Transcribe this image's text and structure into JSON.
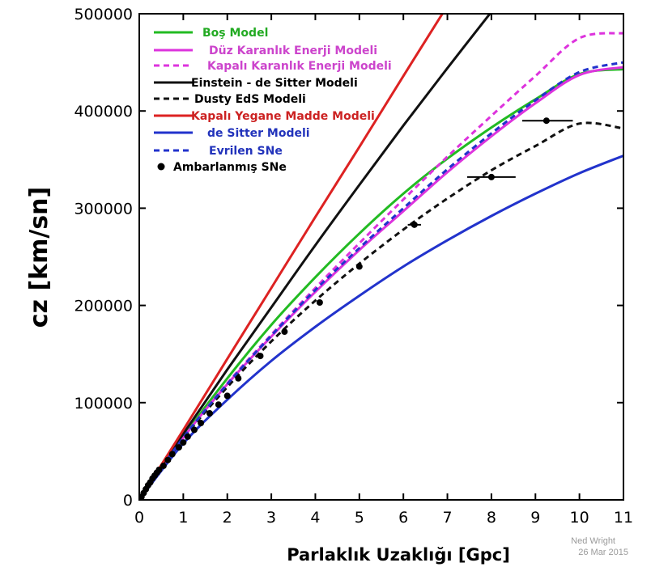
{
  "chart_data": {
    "type": "line",
    "xlabel": "Parlaklık Uzaklığı [Gpc]",
    "ylabel": "cz [km/sn]",
    "xlim": [
      0,
      11
    ],
    "ylim": [
      0,
      500000
    ],
    "x_ticks": [
      0,
      1,
      2,
      3,
      4,
      5,
      6,
      7,
      8,
      9,
      10,
      11
    ],
    "y_ticks": [
      0,
      100000,
      200000,
      300000,
      400000,
      500000
    ],
    "y_tick_labels": [
      "0",
      "100000",
      "200000",
      "300000",
      "400000",
      "500000"
    ],
    "legend_position": "top-left",
    "grid": false,
    "credit": [
      "Ned Wright",
      "26 Mar 2015"
    ],
    "series": [
      {
        "name": "Boş Model",
        "color": "#22bb22",
        "dash": "solid",
        "label_color": "#22aa22",
        "points": [
          [
            0,
            0
          ],
          [
            1,
            65000
          ],
          [
            2,
            125000
          ],
          [
            3,
            180000
          ],
          [
            4,
            229000
          ],
          [
            5,
            274000
          ],
          [
            6,
            315000
          ],
          [
            7,
            351000
          ],
          [
            8,
            383000
          ],
          [
            9,
            412000
          ],
          [
            10,
            438000
          ],
          [
            11,
            443000
          ]
        ]
      },
      {
        "name": "Düz Karanlık Enerji Modeli",
        "color": "#dd33dd",
        "dash": "solid",
        "label_color": "#cc44cc",
        "points": [
          [
            0,
            0
          ],
          [
            1,
            64000
          ],
          [
            2,
            119000
          ],
          [
            3,
            168000
          ],
          [
            4,
            214000
          ],
          [
            5,
            257000
          ],
          [
            6,
            297000
          ],
          [
            7,
            337000
          ],
          [
            8,
            374000
          ],
          [
            9,
            408000
          ],
          [
            10,
            437000
          ],
          [
            11,
            445000
          ]
        ]
      },
      {
        "name": "Kapalı Karanlık Enerji Modeli",
        "color": "#dd33dd",
        "dash": "dashed",
        "label_color": "#cc44cc",
        "points": [
          [
            0,
            0
          ],
          [
            1,
            64000
          ],
          [
            2,
            120000
          ],
          [
            3,
            170000
          ],
          [
            4,
            218000
          ],
          [
            5,
            264000
          ],
          [
            6,
            309000
          ],
          [
            7,
            353000
          ],
          [
            8,
            395000
          ],
          [
            9,
            436000
          ],
          [
            10,
            475000
          ],
          [
            11,
            480000
          ]
        ]
      },
      {
        "name": "Einstein - de Sitter Modeli",
        "color": "#111111",
        "dash": "solid",
        "label_color": "#000000",
        "points": [
          [
            0,
            0
          ],
          [
            1,
            68000
          ],
          [
            2,
            134000
          ],
          [
            3,
            198000
          ],
          [
            4,
            262000
          ],
          [
            5,
            324000
          ],
          [
            6,
            385000
          ],
          [
            7,
            444000
          ],
          [
            8,
            502000
          ]
        ]
      },
      {
        "name": "Dusty EdS Modeli",
        "color": "#111111",
        "dash": "dashed",
        "label_color": "#000000",
        "points": [
          [
            0,
            0
          ],
          [
            1,
            63000
          ],
          [
            2,
            116000
          ],
          [
            3,
            163000
          ],
          [
            4,
            205000
          ],
          [
            5,
            243000
          ],
          [
            6,
            278000
          ],
          [
            7,
            310000
          ],
          [
            8,
            339000
          ],
          [
            9,
            364000
          ],
          [
            10,
            387000
          ],
          [
            11,
            382000
          ]
        ]
      },
      {
        "name": "Kapalı Yegane Madde Modeli",
        "color": "#dd2222",
        "dash": "solid",
        "label_color": "#cc2222",
        "points": [
          [
            0,
            0
          ],
          [
            1,
            72000
          ],
          [
            2,
            145000
          ],
          [
            3,
            218000
          ],
          [
            4,
            291000
          ],
          [
            5,
            363000
          ],
          [
            6,
            436000
          ],
          [
            6.9,
            501000
          ]
        ]
      },
      {
        "name": "de Sitter Modeli",
        "color": "#2233cc",
        "dash": "solid",
        "label_color": "#2233bb",
        "points": [
          [
            0,
            0
          ],
          [
            1,
            58000
          ],
          [
            2,
            103000
          ],
          [
            3,
            143000
          ],
          [
            4,
            178000
          ],
          [
            5,
            210000
          ],
          [
            6,
            240000
          ],
          [
            7,
            267000
          ],
          [
            8,
            292000
          ],
          [
            9,
            315000
          ],
          [
            10,
            336000
          ],
          [
            11,
            354000
          ]
        ]
      },
      {
        "name": "Evrilen SNe",
        "color": "#2233cc",
        "dash": "dashed",
        "label_color": "#2233bb",
        "points": [
          [
            0,
            0
          ],
          [
            1,
            64000
          ],
          [
            2,
            119000
          ],
          [
            3,
            169000
          ],
          [
            4,
            216000
          ],
          [
            5,
            259000
          ],
          [
            6,
            300000
          ],
          [
            7,
            340000
          ],
          [
            8,
            377000
          ],
          [
            9,
            411000
          ],
          [
            10,
            440000
          ],
          [
            11,
            450000
          ]
        ]
      },
      {
        "name": "Ambarlanmış SNe",
        "color": "#000000",
        "type": "scatter",
        "label_color": "#000000",
        "points": [
          [
            0.05,
            3000
          ],
          [
            0.1,
            7000
          ],
          [
            0.15,
            11000
          ],
          [
            0.2,
            15000
          ],
          [
            0.25,
            18000
          ],
          [
            0.3,
            22000
          ],
          [
            0.35,
            25000
          ],
          [
            0.4,
            28000
          ],
          [
            0.45,
            31000
          ],
          [
            0.55,
            35000
          ],
          [
            0.65,
            41000
          ],
          [
            0.75,
            47000
          ],
          [
            0.9,
            54000
          ],
          [
            1.0,
            59000
          ],
          [
            1.1,
            65000
          ],
          [
            1.25,
            72000
          ],
          [
            1.4,
            79000
          ],
          [
            1.6,
            89000
          ],
          [
            1.8,
            98000
          ],
          [
            2.0,
            107000
          ],
          [
            2.25,
            125000
          ],
          [
            2.75,
            148000
          ],
          [
            3.3,
            173000
          ],
          [
            4.1,
            203000
          ],
          [
            5.0,
            240000
          ],
          [
            6.25,
            283000
          ],
          [
            8.0,
            332000
          ],
          [
            9.25,
            390000
          ]
        ],
        "error_bars": [
          [
            6.25,
            283000,
            6.1,
            6.4
          ],
          [
            8.0,
            332000,
            7.45,
            8.55
          ],
          [
            9.25,
            390000,
            8.7,
            9.85
          ]
        ]
      }
    ]
  }
}
